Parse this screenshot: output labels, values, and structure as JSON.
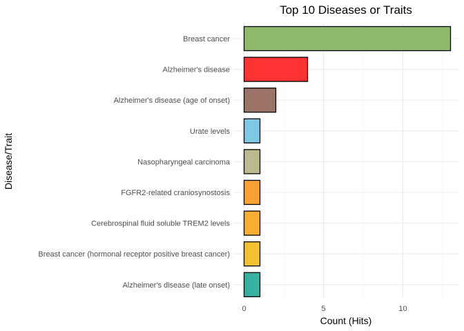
{
  "chart_data": {
    "type": "bar",
    "orientation": "horizontal",
    "title": "Top 10 Diseases or Traits",
    "xlabel": "Count (Hits)",
    "ylabel": "Disease/Trait",
    "xlim": [
      0,
      13
    ],
    "xticks": [
      0,
      5,
      10
    ],
    "categories": [
      "Breast cancer",
      "Alzheimer's disease",
      "Alzheimer's disease (age of onset)",
      "Urate levels",
      "Nasopharyngeal carcinoma",
      "FGFR2-related craniosynostosis",
      "Cerebrospinal fluid soluble TREM2 levels",
      "Breast cancer (hormonal receptor positive breast cancer)",
      "Alzheimer's disease (late onset)"
    ],
    "values": [
      13,
      4,
      2,
      1,
      1,
      1,
      1,
      1,
      1
    ],
    "colors": [
      "#8fb96a",
      "#ff3333",
      "#9b7467",
      "#7ec8e3",
      "#bbb98d",
      "#f9a137",
      "#f8ae31",
      "#f3c12f",
      "#38b2a0"
    ],
    "grid": true,
    "legend": "none"
  }
}
